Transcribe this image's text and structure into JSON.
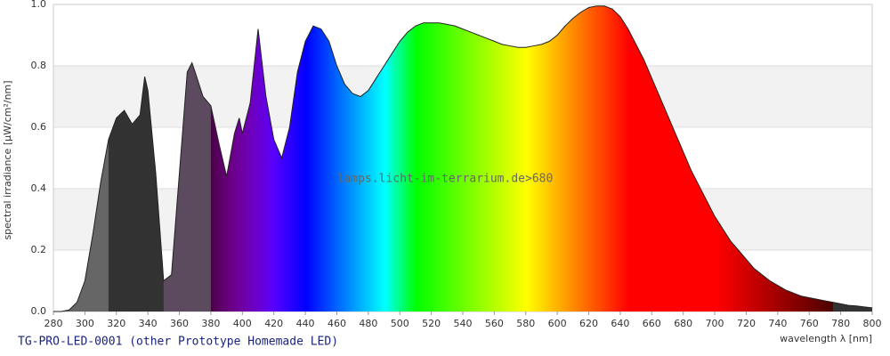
{
  "chart_data": {
    "type": "area",
    "caption": "TG-PRO-LED-0001 (other Prototype Homemade LED)",
    "watermark": "lamps.licht-im-terrarium.de>680",
    "xlabel": "wavelength λ [nm]",
    "ylabel": "spectral irradiance [µW/cm²/nm]",
    "x": [
      280,
      285,
      290,
      295,
      300,
      305,
      310,
      315,
      320,
      325,
      330,
      335,
      338,
      340,
      345,
      350,
      355,
      360,
      365,
      368,
      370,
      375,
      380,
      385,
      390,
      395,
      398,
      400,
      405,
      410,
      415,
      420,
      425,
      430,
      435,
      440,
      445,
      450,
      455,
      460,
      465,
      470,
      475,
      480,
      485,
      490,
      495,
      500,
      505,
      510,
      515,
      520,
      525,
      530,
      535,
      540,
      545,
      550,
      555,
      560,
      565,
      570,
      575,
      580,
      585,
      590,
      595,
      600,
      605,
      610,
      615,
      620,
      625,
      630,
      635,
      640,
      645,
      650,
      655,
      660,
      665,
      670,
      675,
      680,
      685,
      690,
      695,
      700,
      705,
      710,
      715,
      720,
      725,
      730,
      735,
      740,
      745,
      750,
      755,
      760,
      765,
      770,
      775,
      780,
      785,
      790,
      795,
      800
    ],
    "values": [
      0,
      0,
      0.005,
      0.03,
      0.1,
      0.25,
      0.42,
      0.56,
      0.63,
      0.655,
      0.61,
      0.64,
      0.765,
      0.72,
      0.45,
      0.1,
      0.12,
      0.45,
      0.78,
      0.81,
      0.78,
      0.7,
      0.67,
      0.55,
      0.44,
      0.58,
      0.63,
      0.58,
      0.68,
      0.92,
      0.7,
      0.56,
      0.5,
      0.6,
      0.78,
      0.88,
      0.93,
      0.92,
      0.88,
      0.8,
      0.74,
      0.71,
      0.7,
      0.72,
      0.76,
      0.8,
      0.84,
      0.88,
      0.91,
      0.93,
      0.94,
      0.94,
      0.94,
      0.935,
      0.93,
      0.92,
      0.91,
      0.9,
      0.89,
      0.88,
      0.87,
      0.865,
      0.86,
      0.86,
      0.865,
      0.87,
      0.88,
      0.9,
      0.93,
      0.955,
      0.975,
      0.99,
      0.995,
      0.995,
      0.985,
      0.96,
      0.92,
      0.87,
      0.82,
      0.76,
      0.7,
      0.64,
      0.58,
      0.52,
      0.46,
      0.41,
      0.36,
      0.31,
      0.27,
      0.23,
      0.2,
      0.17,
      0.14,
      0.12,
      0.1,
      0.085,
      0.07,
      0.06,
      0.05,
      0.045,
      0.04,
      0.035,
      0.03,
      0.025,
      0.02,
      0.018,
      0.015,
      0.012
    ],
    "xlim": [
      280,
      800
    ],
    "ylim": [
      0,
      1
    ],
    "xticks": [
      280,
      300,
      320,
      340,
      360,
      380,
      400,
      420,
      440,
      460,
      480,
      500,
      520,
      540,
      560,
      580,
      600,
      620,
      640,
      660,
      680,
      700,
      720,
      740,
      760,
      780,
      800
    ],
    "yticks": [
      {
        "value": 0,
        "label": "0.0"
      },
      0.2,
      0.4,
      0.6,
      0.8,
      {
        "value": 1,
        "label": "1.0"
      }
    ],
    "grid": true
  }
}
